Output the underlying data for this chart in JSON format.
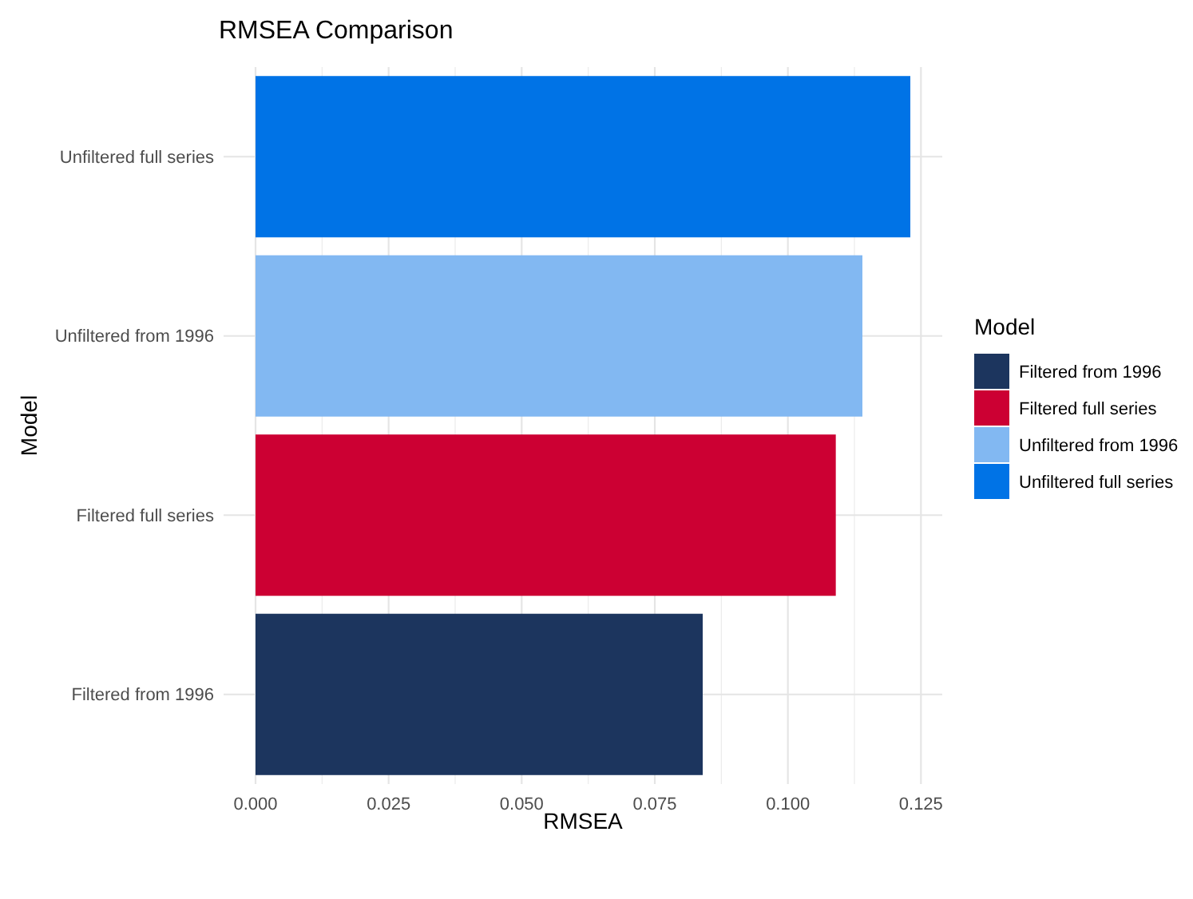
{
  "chart_data": {
    "type": "bar",
    "orientation": "horizontal",
    "title": "RMSEA Comparison",
    "xlabel": "RMSEA",
    "ylabel": "Model",
    "legend_title": "Model",
    "categories": [
      "Unfiltered full series",
      "Unfiltered from 1996",
      "Filtered full series",
      "Filtered from 1996"
    ],
    "series": [
      {
        "name": "Filtered from 1996",
        "color": "#1c355e",
        "values": [
          null,
          null,
          null,
          0.084
        ]
      },
      {
        "name": "Filtered full series",
        "color": "#cc0033",
        "values": [
          null,
          null,
          0.109,
          null
        ]
      },
      {
        "name": "Unfiltered from 1996",
        "color": "#82b8f2",
        "values": [
          null,
          0.114,
          null,
          null
        ]
      },
      {
        "name": "Unfiltered full series",
        "color": "#0073e6",
        "values": [
          0.123,
          null,
          null,
          null
        ]
      }
    ],
    "xlim": [
      -0.006,
      0.129
    ],
    "xticks": [
      {
        "value": 0,
        "label": "0.000"
      },
      {
        "value": 0.025,
        "label": "0.025"
      },
      {
        "value": 0.05,
        "label": "0.050"
      },
      {
        "value": 0.075,
        "label": "0.075"
      },
      {
        "value": 0.1,
        "label": "0.100"
      },
      {
        "value": 0.125,
        "label": "0.125"
      }
    ],
    "grid": true,
    "legend": "right"
  }
}
